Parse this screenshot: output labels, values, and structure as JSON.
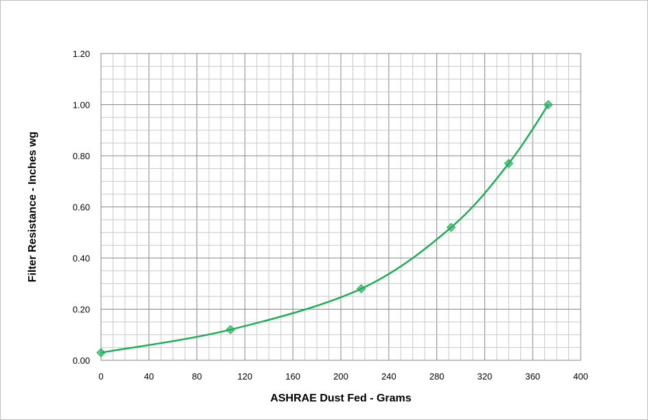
{
  "chart_data": {
    "type": "line",
    "title": "",
    "xlabel": "ASHRAE  Dust Fed - Grams",
    "ylabel": "Filter Resistance - Inches wg",
    "xlim": [
      0,
      400
    ],
    "ylim": [
      0,
      1.2
    ],
    "x_ticks": [
      "0",
      "40",
      "80",
      "120",
      "160",
      "200",
      "240",
      "280",
      "320",
      "360",
      "400"
    ],
    "y_ticks": [
      "0.00",
      "0.20",
      "0.40",
      "0.60",
      "0.80",
      "1.00",
      "1.20"
    ],
    "x_minor_step": 10,
    "y_minor_step": 0.05,
    "grid": true,
    "legend": "none",
    "series": [
      {
        "x": [
          0,
          108,
          217,
          292,
          340,
          373
        ],
        "y": [
          0.03,
          0.12,
          0.28,
          0.52,
          0.77,
          1.0
        ],
        "color": "#1aaf54",
        "marker": "diamond",
        "smooth": true
      }
    ]
  }
}
